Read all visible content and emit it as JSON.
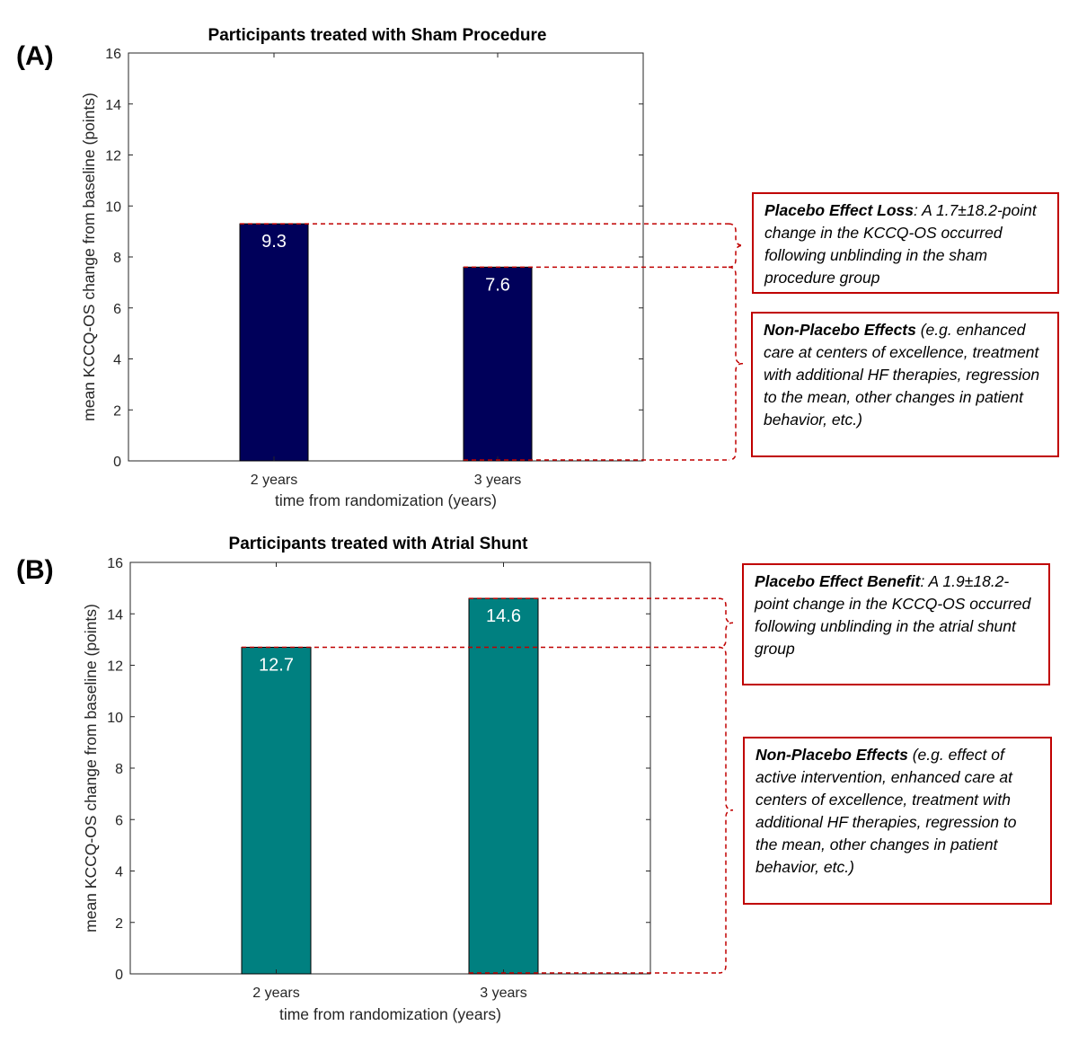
{
  "panels": [
    {
      "label": "(A)",
      "annotations": [
        {
          "head": "Placebo Effect Loss",
          "sep": ":",
          "body": " A 1.7±18.2-point change in the KCCQ-OS occurred following unblinding in the sham procedure group"
        },
        {
          "head": "Non-Placebo Effects",
          "sep": "",
          "body": " (e.g. enhanced care at centers of excellence, treatment with additional HF therapies, regression to the mean, other changes in patient behavior, etc.)"
        }
      ]
    },
    {
      "label": "(B)",
      "annotations": [
        {
          "head": "Placebo Effect Benefit",
          "sep": ":",
          "body": " A 1.9±18.2-point change in the KCCQ-OS occurred following unblinding in the atrial shunt group"
        },
        {
          "head": "Non-Placebo Effects",
          "sep": "",
          "body": " (e.g. effect of active intervention, enhanced care at centers of excellence, treatment with additional HF therapies, regression to the mean, other changes in patient behavior, etc.)"
        }
      ]
    }
  ],
  "chart_data": [
    {
      "type": "bar",
      "title": "Participants treated with Sham Procedure",
      "categories": [
        "2 years",
        "3 years"
      ],
      "values": [
        9.3,
        7.6
      ],
      "value_labels": [
        "9.3",
        "7.6"
      ],
      "xlabel": "time from randomization (years)",
      "ylabel": "mean KCCQ-OS change from baseline (points)",
      "ylim": [
        0,
        16
      ],
      "yticks": [
        "0",
        "2",
        "4",
        "6",
        "8",
        "10",
        "12",
        "14",
        "16"
      ],
      "bar_color": "#00005a",
      "grid": false
    },
    {
      "type": "bar",
      "title": "Participants treated with Atrial Shunt",
      "categories": [
        "2 years",
        "3 years"
      ],
      "values": [
        12.7,
        14.6
      ],
      "value_labels": [
        "12.7",
        "14.6"
      ],
      "xlabel": "time from randomization (years)",
      "ylabel": "mean KCCQ-OS change from baseline (points)",
      "ylim": [
        0,
        16
      ],
      "yticks": [
        "0",
        "2",
        "4",
        "6",
        "8",
        "10",
        "12",
        "14",
        "16"
      ],
      "bar_color": "#008080",
      "grid": false
    }
  ],
  "colors": {
    "annotation_red": "#c00000",
    "axis": "#262626"
  }
}
